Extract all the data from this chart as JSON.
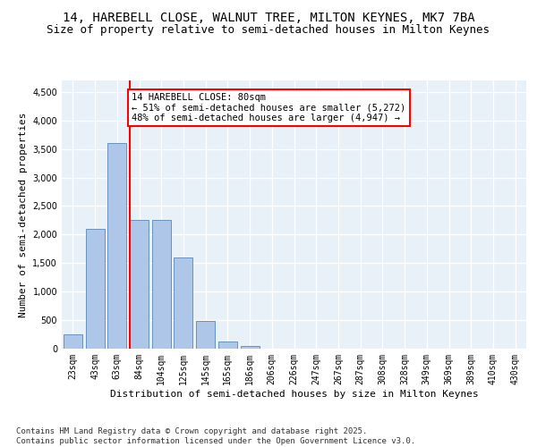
{
  "title1": "14, HAREBELL CLOSE, WALNUT TREE, MILTON KEYNES, MK7 7BA",
  "title2": "Size of property relative to semi-detached houses in Milton Keynes",
  "xlabel": "Distribution of semi-detached houses by size in Milton Keynes",
  "ylabel": "Number of semi-detached properties",
  "categories": [
    "23sqm",
    "43sqm",
    "63sqm",
    "84sqm",
    "104sqm",
    "125sqm",
    "145sqm",
    "165sqm",
    "186sqm",
    "206sqm",
    "226sqm",
    "247sqm",
    "267sqm",
    "287sqm",
    "308sqm",
    "328sqm",
    "349sqm",
    "369sqm",
    "389sqm",
    "410sqm",
    "430sqm"
  ],
  "values": [
    250,
    2100,
    3600,
    2250,
    2250,
    1600,
    480,
    120,
    40,
    5,
    0,
    0,
    0,
    0,
    0,
    0,
    0,
    0,
    0,
    0,
    0
  ],
  "bar_color": "#aec6e8",
  "bar_edge_color": "#5a87b8",
  "vline_color": "red",
  "annotation_text": "14 HAREBELL CLOSE: 80sqm\n← 51% of semi-detached houses are smaller (5,272)\n48% of semi-detached houses are larger (4,947) →",
  "annotation_box_color": "white",
  "annotation_box_edge_color": "red",
  "ylim": [
    0,
    4700
  ],
  "yticks": [
    0,
    500,
    1000,
    1500,
    2000,
    2500,
    3000,
    3500,
    4000,
    4500
  ],
  "bg_color": "#e8f0f8",
  "grid_color": "white",
  "footer_text": "Contains HM Land Registry data © Crown copyright and database right 2025.\nContains public sector information licensed under the Open Government Licence v3.0.",
  "title1_fontsize": 10,
  "title2_fontsize": 9,
  "xlabel_fontsize": 8,
  "ylabel_fontsize": 8,
  "tick_fontsize": 7,
  "annotation_fontsize": 7.5,
  "footer_fontsize": 6.5
}
